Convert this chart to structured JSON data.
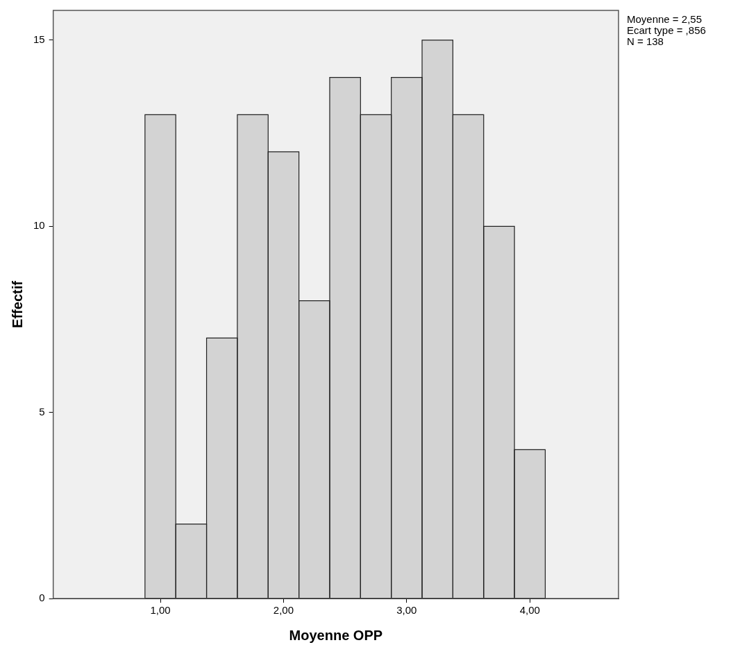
{
  "chart_data": {
    "type": "histogram",
    "xlabel": "Moyenne OPP",
    "ylabel": "Effectif",
    "bins": [
      0.875,
      1.125,
      1.375,
      1.625,
      1.875,
      2.125,
      2.375,
      2.625,
      2.875,
      3.125,
      3.375,
      3.625,
      3.875,
      4.125
    ],
    "values": [
      13,
      2,
      7,
      13,
      12,
      8,
      14,
      13,
      14,
      15,
      13,
      10,
      4
    ],
    "color": "#d3d3d3",
    "xlim": [
      0.13,
      4.72
    ],
    "xticks": [
      {
        "value": 1,
        "label": "1,00"
      },
      {
        "value": 2,
        "label": "2,00"
      },
      {
        "value": 3,
        "label": "3,00"
      },
      {
        "value": 4,
        "label": "4,00"
      }
    ],
    "ylim": [
      0,
      15.8
    ],
    "yticks": [
      0,
      5,
      10,
      15
    ],
    "annotations": [
      "Moyenne = 2,55",
      "Ecart type = ,856",
      "N = 138"
    ],
    "grid": false,
    "legend": false
  }
}
